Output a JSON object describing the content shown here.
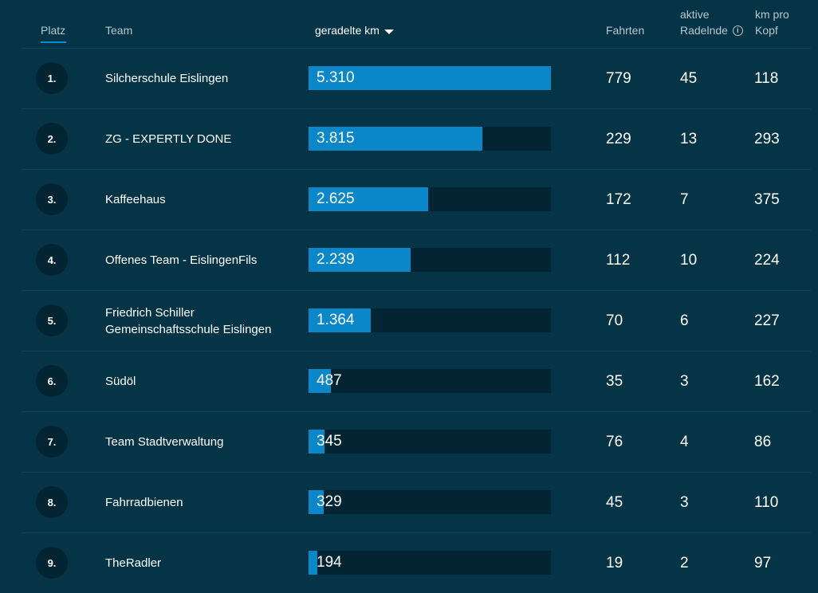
{
  "header": {
    "platz": "Platz",
    "team": "Team",
    "km": "geradelte km",
    "fahrten": "Fahrten",
    "aktive_line1": "aktive",
    "aktive_line2": "Radelnde",
    "kmpro_line1": "km pro",
    "kmpro_line2": "Kopf"
  },
  "colors": {
    "background": "#053446",
    "bar": "#0a87c9",
    "track": "#022433",
    "accent": "#0a8ad2"
  },
  "icons": {
    "sort": "sort-desc-icon",
    "info": "info-icon"
  },
  "rows": [
    {
      "rank": "1.",
      "team_lines": [
        "Silcherschule Eislingen"
      ],
      "km": "5.310",
      "km_value": 5310,
      "fahrten": "779",
      "aktive": "45",
      "kmpro": "118"
    },
    {
      "rank": "2.",
      "team_lines": [
        "ZG - EXPERTLY DONE"
      ],
      "km": "3.815",
      "km_value": 3815,
      "fahrten": "229",
      "aktive": "13",
      "kmpro": "293"
    },
    {
      "rank": "3.",
      "team_lines": [
        "Kaffeehaus"
      ],
      "km": "2.625",
      "km_value": 2625,
      "fahrten": "172",
      "aktive": "7",
      "kmpro": "375"
    },
    {
      "rank": "4.",
      "team_lines": [
        "Offenes Team - EislingenFils"
      ],
      "km": "2.239",
      "km_value": 2239,
      "fahrten": "112",
      "aktive": "10",
      "kmpro": "224"
    },
    {
      "rank": "5.",
      "team_lines": [
        "Friedrich Schiller",
        "Gemeinschaftsschule Eislingen"
      ],
      "km": "1.364",
      "km_value": 1364,
      "fahrten": "70",
      "aktive": "6",
      "kmpro": "227"
    },
    {
      "rank": "6.",
      "team_lines": [
        "Südöl"
      ],
      "km": "487",
      "km_value": 487,
      "fahrten": "35",
      "aktive": "3",
      "kmpro": "162"
    },
    {
      "rank": "7.",
      "team_lines": [
        "Team Stadtverwaltung"
      ],
      "km": "345",
      "km_value": 345,
      "fahrten": "76",
      "aktive": "4",
      "kmpro": "86"
    },
    {
      "rank": "8.",
      "team_lines": [
        "Fahrradbienen"
      ],
      "km": "329",
      "km_value": 329,
      "fahrten": "45",
      "aktive": "3",
      "kmpro": "110"
    },
    {
      "rank": "9.",
      "team_lines": [
        "TheRadler"
      ],
      "km": "194",
      "km_value": 194,
      "fahrten": "19",
      "aktive": "2",
      "kmpro": "97"
    }
  ]
}
